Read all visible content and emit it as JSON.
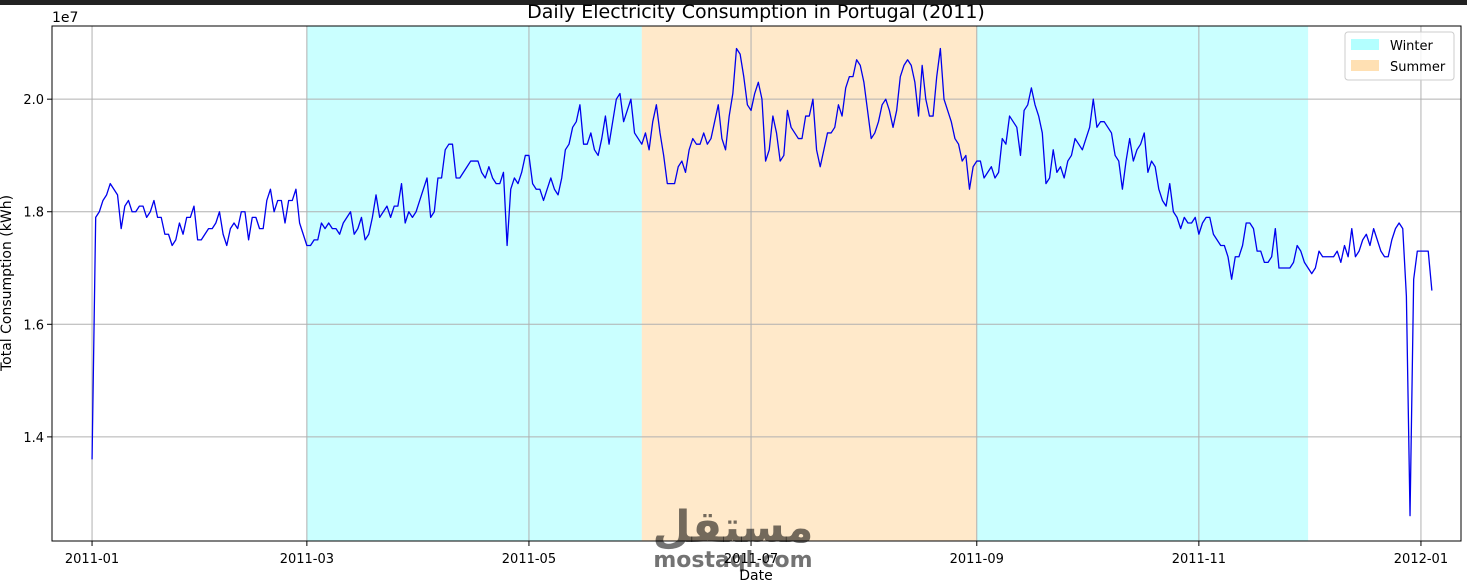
{
  "chart_data": {
    "type": "line",
    "title": "Daily Electricity Consumption in Portugal (2011)",
    "xlabel": "Date",
    "ylabel": "Total Consumption (kWh)",
    "y_multiplier_label": "1e7",
    "x_tick_labels": [
      "2011-01",
      "2011-03",
      "2011-05",
      "2011-07",
      "2011-09",
      "2011-11",
      "2012-01"
    ],
    "x_ticks": [
      "2011-01-01",
      "2011-03-01",
      "2011-05-01",
      "2011-07-01",
      "2011-09-01",
      "2011-11-01",
      "2012-01-01"
    ],
    "y_tick_labels": [
      "1.4",
      "1.6",
      "1.8",
      "2.0"
    ],
    "y_ticks": [
      1.4,
      1.6,
      1.8,
      2.0
    ],
    "xlim": [
      "2010-12-21",
      "2012-01-12"
    ],
    "ylim": [
      1.215,
      2.13
    ],
    "grid": true,
    "legend_position": "top-right",
    "line_color": "#0000ee",
    "shaded_regions": [
      {
        "label": "Winter",
        "start": "2011-03-01",
        "end": "2011-06-01",
        "color": "#b3ffff"
      },
      {
        "label": "Summer",
        "start": "2011-06-01",
        "end": "2011-09-01",
        "color": "#ffe0b3"
      },
      {
        "label": "Winter",
        "start": "2011-09-01",
        "end": "2011-12-01",
        "color": "#b3ffff"
      }
    ],
    "legend": [
      {
        "label": "Winter",
        "color": "#b3ffff"
      },
      {
        "label": "Summer",
        "color": "#ffe0b3"
      }
    ],
    "series": [
      {
        "x_start": "2011-01-01",
        "x_end": "2011-12-31",
        "values": [
          1.36,
          1.79,
          1.8,
          1.82,
          1.83,
          1.85,
          1.84,
          1.83,
          1.77,
          1.81,
          1.82,
          1.8,
          1.8,
          1.81,
          1.81,
          1.79,
          1.8,
          1.82,
          1.79,
          1.79,
          1.76,
          1.76,
          1.74,
          1.75,
          1.78,
          1.76,
          1.79,
          1.79,
          1.81,
          1.75,
          1.75,
          1.76,
          1.77,
          1.77,
          1.78,
          1.8,
          1.76,
          1.74,
          1.77,
          1.78,
          1.77,
          1.8,
          1.8,
          1.75,
          1.79,
          1.79,
          1.77,
          1.77,
          1.82,
          1.84,
          1.8,
          1.82,
          1.82,
          1.78,
          1.82,
          1.82,
          1.84,
          1.78,
          1.76,
          1.74,
          1.74,
          1.75,
          1.75,
          1.78,
          1.77,
          1.78,
          1.77,
          1.77,
          1.76,
          1.78,
          1.79,
          1.8,
          1.76,
          1.77,
          1.79,
          1.75,
          1.76,
          1.79,
          1.83,
          1.79,
          1.8,
          1.81,
          1.79,
          1.81,
          1.81,
          1.85,
          1.78,
          1.8,
          1.79,
          1.8,
          1.82,
          1.84,
          1.86,
          1.79,
          1.8,
          1.86,
          1.86,
          1.91,
          1.92,
          1.92,
          1.86,
          1.86,
          1.87,
          1.88,
          1.89,
          1.89,
          1.89,
          1.87,
          1.86,
          1.88,
          1.86,
          1.85,
          1.85,
          1.87,
          1.74,
          1.84,
          1.86,
          1.85,
          1.87,
          1.9,
          1.9,
          1.85,
          1.84,
          1.84,
          1.82,
          1.84,
          1.86,
          1.84,
          1.83,
          1.86,
          1.91,
          1.92,
          1.95,
          1.96,
          1.99,
          1.92,
          1.92,
          1.94,
          1.91,
          1.9,
          1.93,
          1.97,
          1.92,
          1.96,
          2.0,
          2.01,
          1.96,
          1.98,
          2.0,
          1.94,
          1.93,
          1.92,
          1.94,
          1.91,
          1.96,
          1.99,
          1.94,
          1.9,
          1.85,
          1.85,
          1.85,
          1.88,
          1.89,
          1.87,
          1.91,
          1.93,
          1.92,
          1.92,
          1.94,
          1.92,
          1.93,
          1.96,
          1.99,
          1.93,
          1.91,
          1.97,
          2.01,
          2.09,
          2.08,
          2.04,
          1.99,
          1.98,
          2.01,
          2.03,
          2.0,
          1.89,
          1.91,
          1.97,
          1.94,
          1.89,
          1.9,
          1.98,
          1.95,
          1.94,
          1.93,
          1.93,
          1.97,
          1.97,
          2.0,
          1.91,
          1.88,
          1.91,
          1.94,
          1.94,
          1.95,
          1.99,
          1.97,
          2.02,
          2.04,
          2.04,
          2.07,
          2.06,
          2.03,
          1.98,
          1.93,
          1.94,
          1.96,
          1.99,
          2.0,
          1.98,
          1.95,
          1.98,
          2.04,
          2.06,
          2.07,
          2.06,
          2.03,
          1.97,
          2.06,
          2.0,
          1.97,
          1.97,
          2.04,
          2.09,
          2.0,
          1.98,
          1.96,
          1.93,
          1.92,
          1.89,
          1.9,
          1.84,
          1.88,
          1.89,
          1.89,
          1.86,
          1.87,
          1.88,
          1.86,
          1.87,
          1.93,
          1.92,
          1.97,
          1.96,
          1.95,
          1.9,
          1.98,
          1.99,
          2.02,
          1.99,
          1.97,
          1.94,
          1.85,
          1.86,
          1.91,
          1.87,
          1.88,
          1.86,
          1.89,
          1.9,
          1.93,
          1.92,
          1.91,
          1.93,
          1.95,
          2.0,
          1.95,
          1.96,
          1.96,
          1.95,
          1.94,
          1.9,
          1.89,
          1.84,
          1.89,
          1.93,
          1.89,
          1.91,
          1.92,
          1.94,
          1.87,
          1.89,
          1.88,
          1.84,
          1.82,
          1.81,
          1.85,
          1.8,
          1.79,
          1.77,
          1.79,
          1.78,
          1.78,
          1.79,
          1.76,
          1.78,
          1.79,
          1.79,
          1.76,
          1.75,
          1.74,
          1.74,
          1.72,
          1.68,
          1.72,
          1.72,
          1.74,
          1.78,
          1.78,
          1.77,
          1.73,
          1.73,
          1.71,
          1.71,
          1.72,
          1.77,
          1.7,
          1.7,
          1.7,
          1.7,
          1.71,
          1.74,
          1.73,
          1.71,
          1.7,
          1.69,
          1.7,
          1.73,
          1.72,
          1.72,
          1.72,
          1.72,
          1.73,
          1.71,
          1.74,
          1.72,
          1.77,
          1.72,
          1.73,
          1.75,
          1.76,
          1.74,
          1.77,
          1.75,
          1.73,
          1.72,
          1.72,
          1.75,
          1.77,
          1.78,
          1.77,
          1.65,
          1.26,
          1.68,
          1.73,
          1.73,
          1.73,
          1.73,
          1.66
        ]
      }
    ],
    "watermark": {
      "arabic": "مستقل",
      "latin": "mostaql.com"
    }
  }
}
